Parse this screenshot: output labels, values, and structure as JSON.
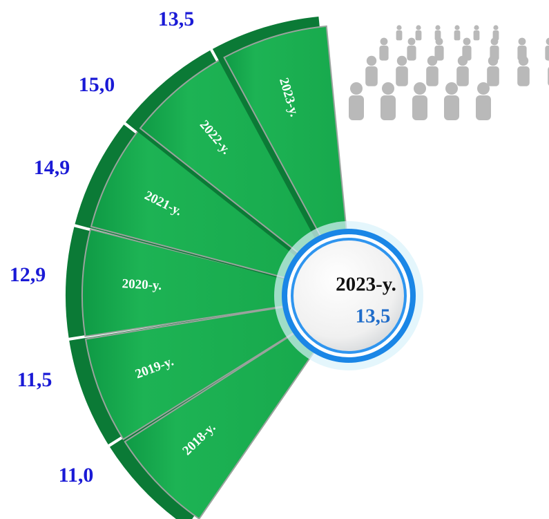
{
  "items": [
    {
      "year": "2018-y.",
      "value": "11,0"
    },
    {
      "year": "2019-y.",
      "value": "11,5"
    },
    {
      "year": "2020-y.",
      "value": "12,9"
    },
    {
      "year": "2021-y.",
      "value": "14,9"
    },
    {
      "year": "2022-y.",
      "value": "15,0"
    },
    {
      "year": "2023-y.",
      "value": "13,5"
    }
  ],
  "center": {
    "year": "2023-y.",
    "value": "13,5"
  }
}
